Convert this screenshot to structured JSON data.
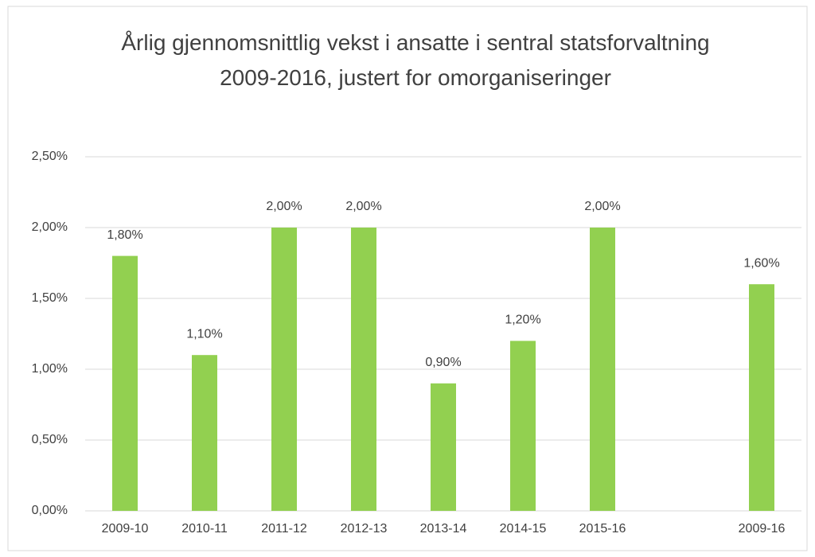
{
  "chart_data": {
    "type": "bar",
    "title": "Årlig gjennomsnittlig vekst i ansatte i sentral statsforvaltning 2009-2016, justert for omorganiseringer",
    "categories": [
      "2009-10",
      "2010-11",
      "2011-12",
      "2012-13",
      "2013-14",
      "2014-15",
      "2015-16",
      null,
      "2009-16"
    ],
    "values": [
      1.8,
      1.1,
      2.0,
      2.0,
      0.9,
      1.2,
      2.0,
      null,
      1.6
    ],
    "value_labels": [
      "1,80%",
      "1,10%",
      "2,00%",
      "2,00%",
      "0,90%",
      "1,20%",
      "2,00%",
      null,
      "1,60%"
    ],
    "color": "#92d050",
    "ylim": [
      0,
      2.5
    ],
    "yticks": [
      {
        "value": 0,
        "label": "0,00%"
      },
      {
        "value": 0.5,
        "label": "0,50%"
      },
      {
        "value": 1.0,
        "label": "1,00%"
      },
      {
        "value": 1.5,
        "label": "1,50%"
      },
      {
        "value": 2.0,
        "label": "2,00%"
      },
      {
        "value": 2.5,
        "label": "2,50%"
      }
    ],
    "grid": true
  }
}
